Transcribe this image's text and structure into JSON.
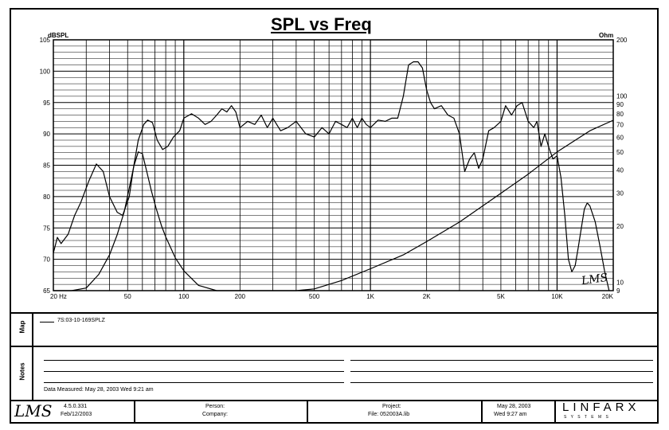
{
  "chart_data": {
    "type": "line",
    "title": "SPL vs Freq",
    "y_left_label": "dBSPL",
    "y_right_label": "Ohm",
    "x_scale": "log",
    "xlim": [
      20,
      20000
    ],
    "ylim_left": [
      65,
      105
    ],
    "ylim_right_log": [
      9,
      200
    ],
    "x_tick_labels": [
      {
        "f": 20,
        "label": "20 Hz"
      },
      {
        "f": 50,
        "label": "50"
      },
      {
        "f": 100,
        "label": "100"
      },
      {
        "f": 200,
        "label": "200"
      },
      {
        "f": 500,
        "label": "500"
      },
      {
        "f": 1000,
        "label": "1K"
      },
      {
        "f": 2000,
        "label": "2K"
      },
      {
        "f": 5000,
        "label": "5K"
      },
      {
        "f": 10000,
        "label": "10K"
      },
      {
        "f": 20000,
        "label": "20K"
      }
    ],
    "y_left_ticks": [
      65,
      70,
      75,
      80,
      85,
      90,
      95,
      100,
      105
    ],
    "y_right_ticks": [
      9,
      10,
      20,
      30,
      40,
      50,
      60,
      70,
      80,
      90,
      100,
      200
    ],
    "grid": true,
    "series": [
      {
        "name": "",
        "axis": "left",
        "unit": "dBSPL",
        "points": [
          [
            20,
            71
          ],
          [
            21,
            73.5
          ],
          [
            22,
            72.5
          ],
          [
            24,
            74
          ],
          [
            26,
            77
          ],
          [
            28,
            79
          ],
          [
            31,
            82.5
          ],
          [
            34,
            85.2
          ],
          [
            37,
            84
          ],
          [
            40,
            80
          ],
          [
            44,
            77.5
          ],
          [
            47,
            77
          ],
          [
            51,
            80
          ],
          [
            54,
            85
          ],
          [
            57,
            89
          ],
          [
            61,
            91.5
          ],
          [
            64,
            92.2
          ],
          [
            68,
            91.8
          ],
          [
            72,
            89
          ],
          [
            77,
            87.5
          ],
          [
            82,
            88
          ],
          [
            88,
            89.5
          ],
          [
            95,
            90.5
          ],
          [
            100,
            92.5
          ],
          [
            110,
            93.2
          ],
          [
            120,
            92.5
          ],
          [
            130,
            91.5
          ],
          [
            140,
            92
          ],
          [
            150,
            93
          ],
          [
            160,
            94
          ],
          [
            170,
            93.5
          ],
          [
            180,
            94.5
          ],
          [
            190,
            93.5
          ],
          [
            200,
            91
          ],
          [
            220,
            92
          ],
          [
            240,
            91.5
          ],
          [
            260,
            93
          ],
          [
            280,
            91
          ],
          [
            300,
            92.5
          ],
          [
            330,
            90.5
          ],
          [
            360,
            91
          ],
          [
            400,
            92
          ],
          [
            450,
            90
          ],
          [
            500,
            89.5
          ],
          [
            550,
            91
          ],
          [
            600,
            90
          ],
          [
            650,
            92
          ],
          [
            700,
            91.5
          ],
          [
            750,
            91
          ],
          [
            800,
            92.5
          ],
          [
            850,
            91
          ],
          [
            900,
            92.5
          ],
          [
            950,
            91.5
          ],
          [
            1000,
            91
          ],
          [
            1100,
            92.2
          ],
          [
            1200,
            92
          ],
          [
            1300,
            92.5
          ],
          [
            1400,
            92.5
          ],
          [
            1500,
            96
          ],
          [
            1600,
            101
          ],
          [
            1700,
            101.5
          ],
          [
            1800,
            101.5
          ],
          [
            1900,
            100.5
          ],
          [
            2000,
            97
          ],
          [
            2100,
            95
          ],
          [
            2200,
            94
          ],
          [
            2400,
            94.5
          ],
          [
            2600,
            93
          ],
          [
            2800,
            92.5
          ],
          [
            3000,
            90
          ],
          [
            3200,
            84
          ],
          [
            3400,
            86
          ],
          [
            3600,
            87
          ],
          [
            3800,
            84.5
          ],
          [
            4000,
            86
          ],
          [
            4300,
            90.5
          ],
          [
            4600,
            91
          ],
          [
            5000,
            92
          ],
          [
            5300,
            94.5
          ],
          [
            5700,
            93
          ],
          [
            6100,
            94.5
          ],
          [
            6500,
            95
          ],
          [
            7000,
            92
          ],
          [
            7500,
            91
          ],
          [
            7800,
            92
          ],
          [
            8200,
            88
          ],
          [
            8600,
            90
          ],
          [
            9000,
            88
          ],
          [
            9500,
            86
          ],
          [
            10000,
            86.5
          ],
          [
            10500,
            83
          ],
          [
            11000,
            77
          ],
          [
            11500,
            70
          ],
          [
            12000,
            68
          ],
          [
            12500,
            69
          ],
          [
            13000,
            72
          ],
          [
            14000,
            78
          ],
          [
            14500,
            79
          ],
          [
            15000,
            78.5
          ],
          [
            16000,
            76
          ],
          [
            17000,
            72
          ],
          [
            18000,
            68
          ],
          [
            19000,
            65
          ]
        ]
      },
      {
        "name": "",
        "axis": "right",
        "unit": "Ohm",
        "points": [
          [
            20,
            7.8
          ],
          [
            25,
            8.3
          ],
          [
            30,
            9.3
          ],
          [
            35,
            11
          ],
          [
            40,
            14
          ],
          [
            44,
            18
          ],
          [
            48,
            24
          ],
          [
            51,
            32
          ],
          [
            54,
            42
          ],
          [
            57,
            50
          ],
          [
            60,
            49
          ],
          [
            63,
            40
          ],
          [
            67,
            31
          ],
          [
            71,
            25
          ],
          [
            76,
            20
          ],
          [
            80,
            17.5
          ],
          [
            90,
            13.5
          ],
          [
            100,
            11.5
          ],
          [
            120,
            9.6
          ],
          [
            150,
            8.5
          ],
          [
            180,
            8.1
          ],
          [
            200,
            8
          ],
          [
            250,
            8
          ],
          [
            300,
            8.1
          ],
          [
            400,
            8.6
          ],
          [
            500,
            9.2
          ],
          [
            700,
            10.2
          ],
          [
            1000,
            11.8
          ],
          [
            1500,
            14
          ],
          [
            2000,
            16.5
          ],
          [
            3000,
            21
          ],
          [
            5000,
            30
          ],
          [
            7000,
            38
          ],
          [
            10000,
            50
          ],
          [
            15000,
            65
          ],
          [
            20000,
            74
          ]
        ]
      }
    ]
  },
  "legend": {
    "section_label": "Map",
    "entry": "7S:03-10-169SPLZ"
  },
  "notes": {
    "section_label": "Notes",
    "date_measured": "Data Measured: May 28, 2003  Wed  9:21 am"
  },
  "footer": {
    "logo": "LMS",
    "version": "4.5.0.331",
    "version_date": "Feb/12/2003",
    "person_label": "Person:",
    "company_label": "Company:",
    "project_label": "Project:",
    "file_label": "File: 052003A.lib",
    "date": "May 28, 2003",
    "time": "Wed  9:27 am",
    "brand": "LINFARX",
    "brand_sub": "S  Y  S  T  E  M  S"
  },
  "signature_text": "LMS"
}
